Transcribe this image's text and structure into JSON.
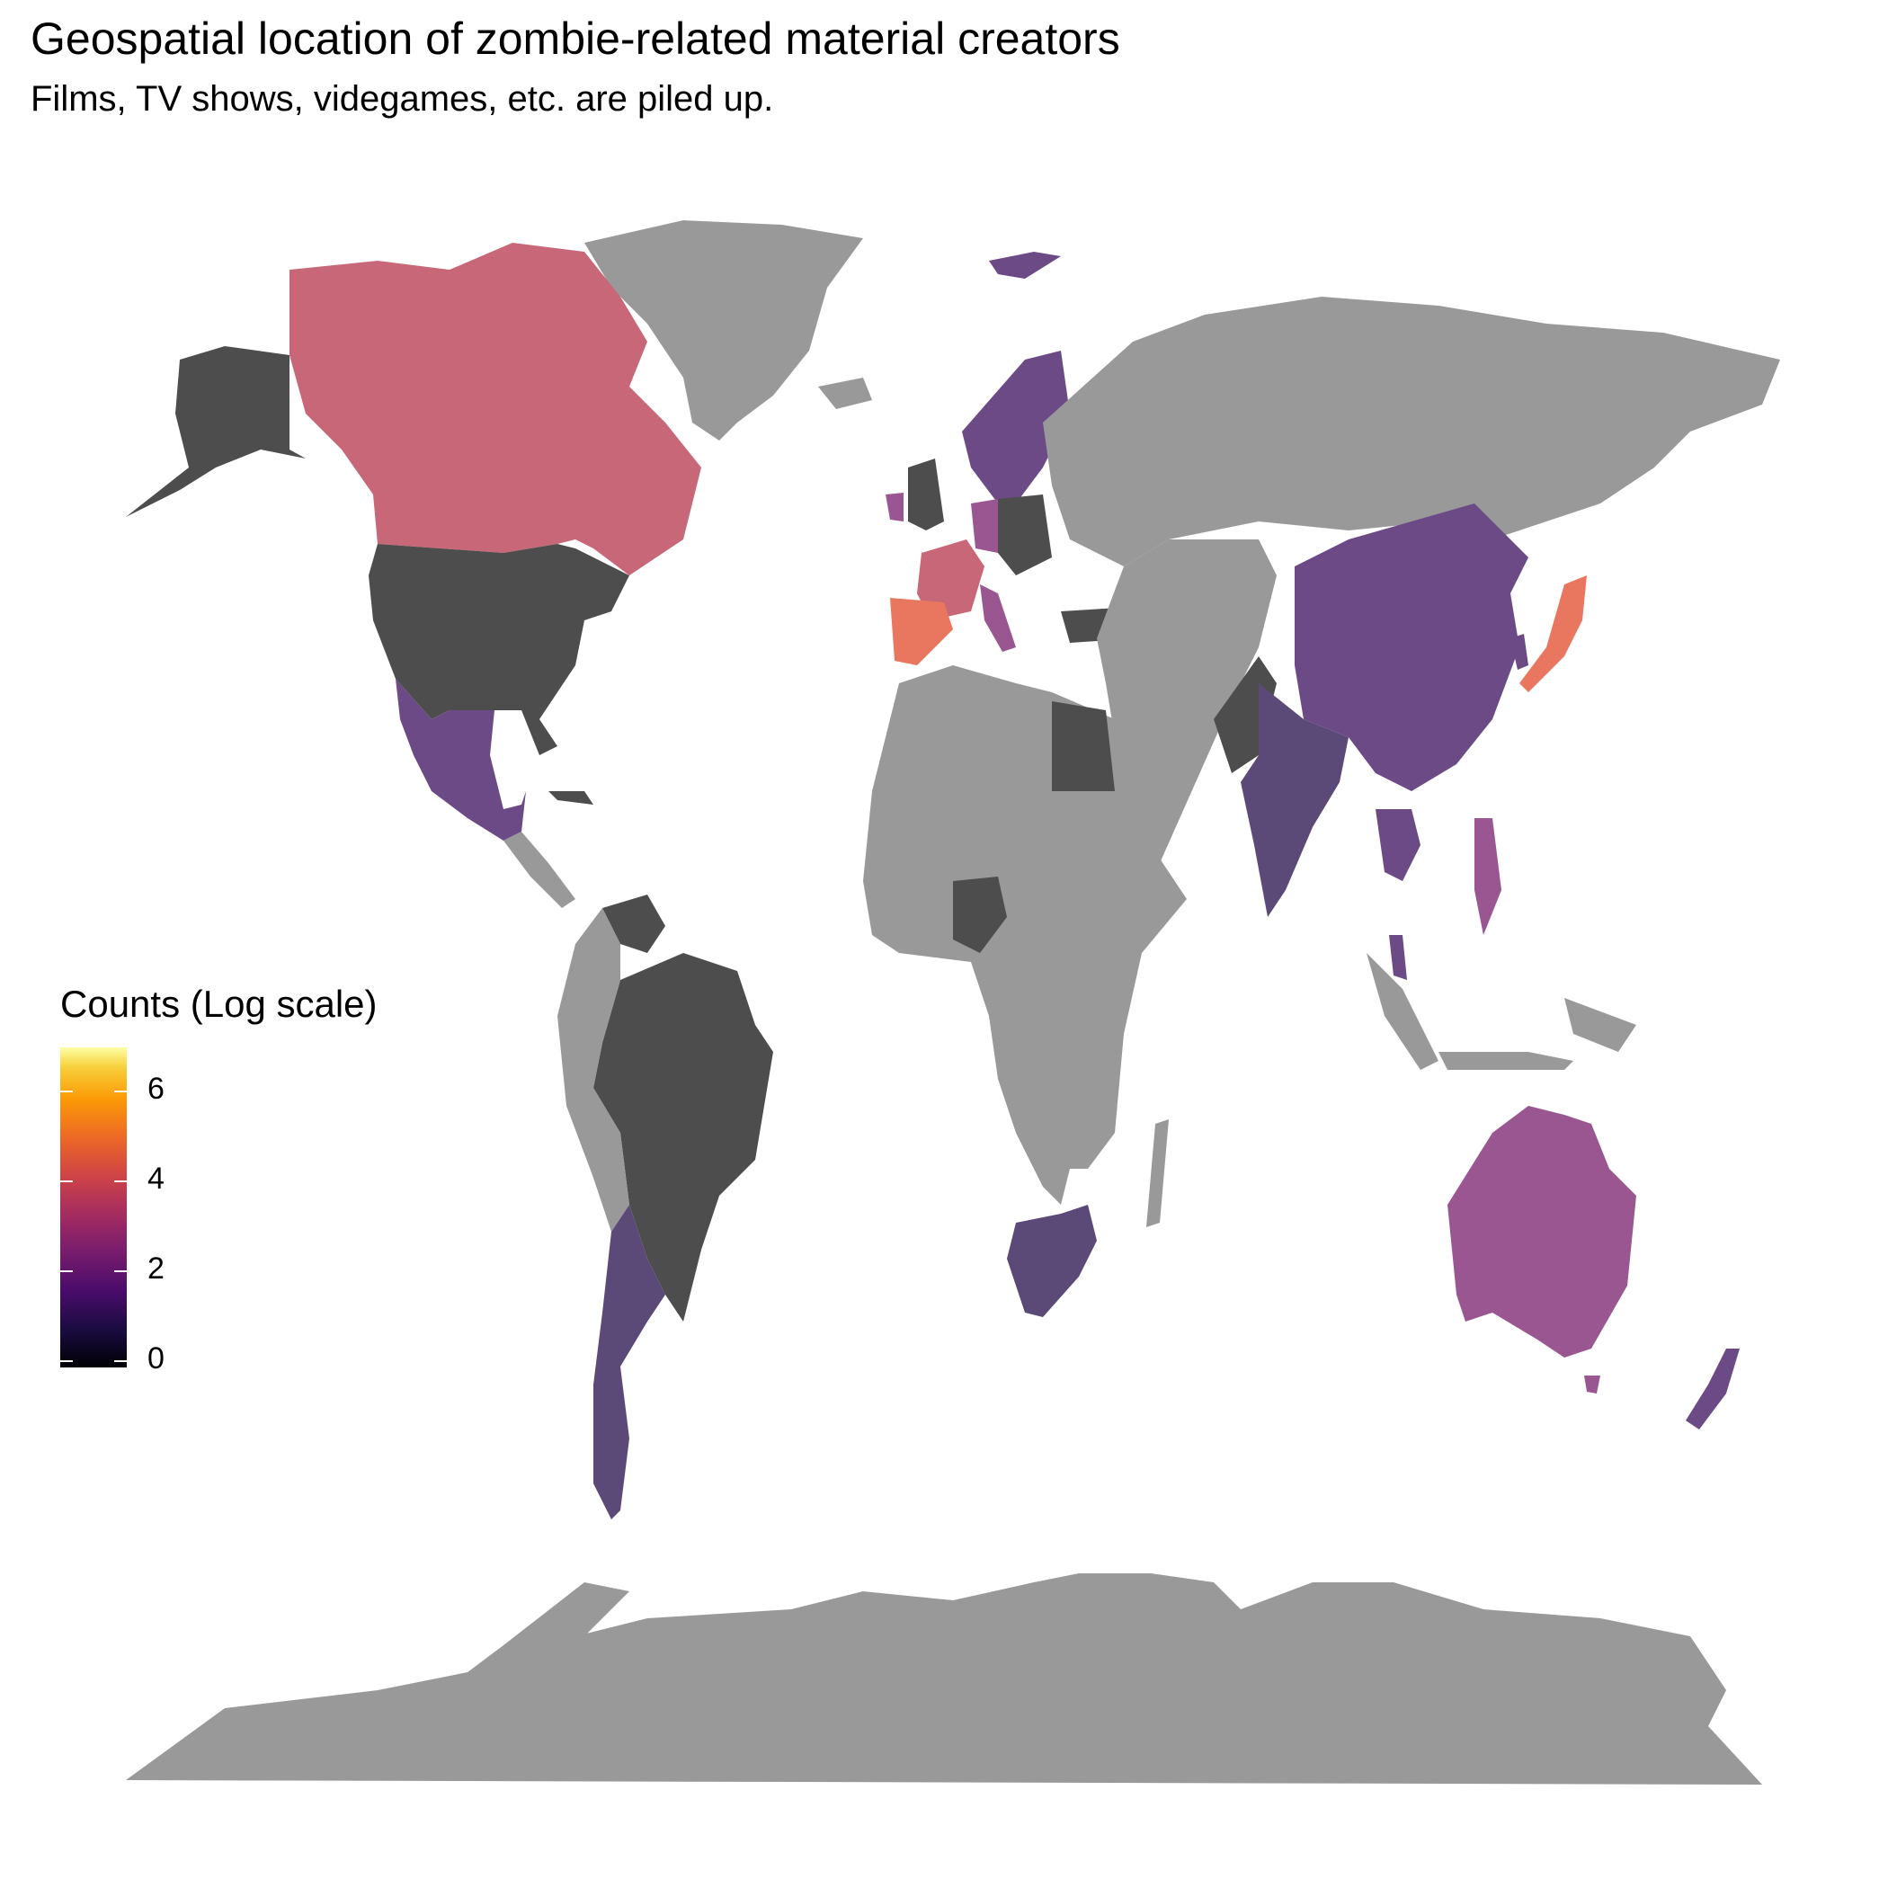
{
  "title": "Geospatial location of zombie-related material creators",
  "subtitle": "Films, TV shows, videgames, etc. are piled up.",
  "legend": {
    "title": "Counts (Log scale)",
    "ticks": [
      "6",
      "4",
      "2",
      "0"
    ],
    "scale": "inferno",
    "range": [
      0,
      7
    ],
    "no_data_color": "#999999"
  },
  "chart_data": {
    "type": "choropleth",
    "value_scale": "log",
    "colors": {
      "no_data": "#999999",
      "very_low": "#4d4d4d",
      "low": "#5b4a78",
      "mid": "#6b4a86",
      "mid_high": "#9a5690",
      "high": "#c86777",
      "highest": "#e9775f"
    },
    "regions": [
      {
        "name": "Canada",
        "level": "high"
      },
      {
        "name": "United States",
        "level": "very_low"
      },
      {
        "name": "Mexico",
        "level": "mid"
      },
      {
        "name": "Brazil",
        "level": "very_low"
      },
      {
        "name": "Argentina",
        "level": "low"
      },
      {
        "name": "Spain",
        "level": "highest"
      },
      {
        "name": "France",
        "level": "high"
      },
      {
        "name": "Germany",
        "level": "mid_high"
      },
      {
        "name": "United Kingdom",
        "level": "very_low"
      },
      {
        "name": "Scandinavia",
        "level": "mid"
      },
      {
        "name": "China",
        "level": "mid"
      },
      {
        "name": "India",
        "level": "low"
      },
      {
        "name": "Japan",
        "level": "highest"
      },
      {
        "name": "Australia",
        "level": "mid_high"
      },
      {
        "name": "New Zealand",
        "level": "mid"
      },
      {
        "name": "South Africa",
        "level": "low"
      },
      {
        "name": "Nigeria",
        "level": "very_low"
      },
      {
        "name": "Egypt",
        "level": "very_low"
      },
      {
        "name": "Turkey",
        "level": "very_low"
      },
      {
        "name": "Pakistan",
        "level": "very_low"
      },
      {
        "name": "Philippines",
        "level": "mid"
      },
      {
        "name": "Thailand",
        "level": "mid"
      },
      {
        "name": "Venezuela",
        "level": "very_low"
      }
    ]
  }
}
